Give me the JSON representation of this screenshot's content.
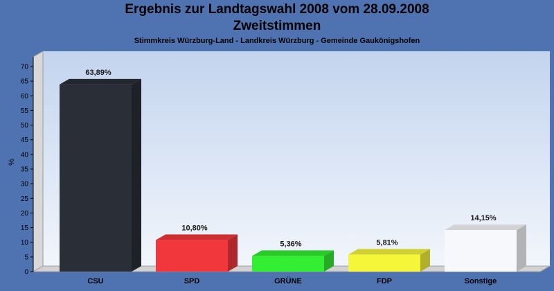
{
  "chart_data": {
    "type": "bar",
    "title": "Ergebnis zur Landtagswahl 2008 vom 28.09.2008",
    "subtitle": "Zweitstimmen",
    "caption": "Stimmkreis Würzburg-Land - Landkreis Würzburg - Gemeinde Gaukönigshofen",
    "ylabel": "%",
    "xlabel": "",
    "ylim": [
      0,
      70
    ],
    "yticks": [
      0,
      5,
      10,
      15,
      20,
      25,
      30,
      35,
      40,
      45,
      50,
      55,
      60,
      65,
      70
    ],
    "grid": false,
    "categories": [
      "CSU",
      "SPD",
      "GRÜNE",
      "FDP",
      "Sonstige"
    ],
    "values": [
      63.89,
      10.8,
      5.36,
      5.81,
      14.15
    ],
    "value_labels": [
      "63,89%",
      "10,80%",
      "5,36%",
      "5,81%",
      "14,15%"
    ],
    "colors": [
      "#2a2e36",
      "#f2373c",
      "#33ee33",
      "#f5f53a",
      "#f7f8fc"
    ],
    "background": "#4f73b0"
  }
}
